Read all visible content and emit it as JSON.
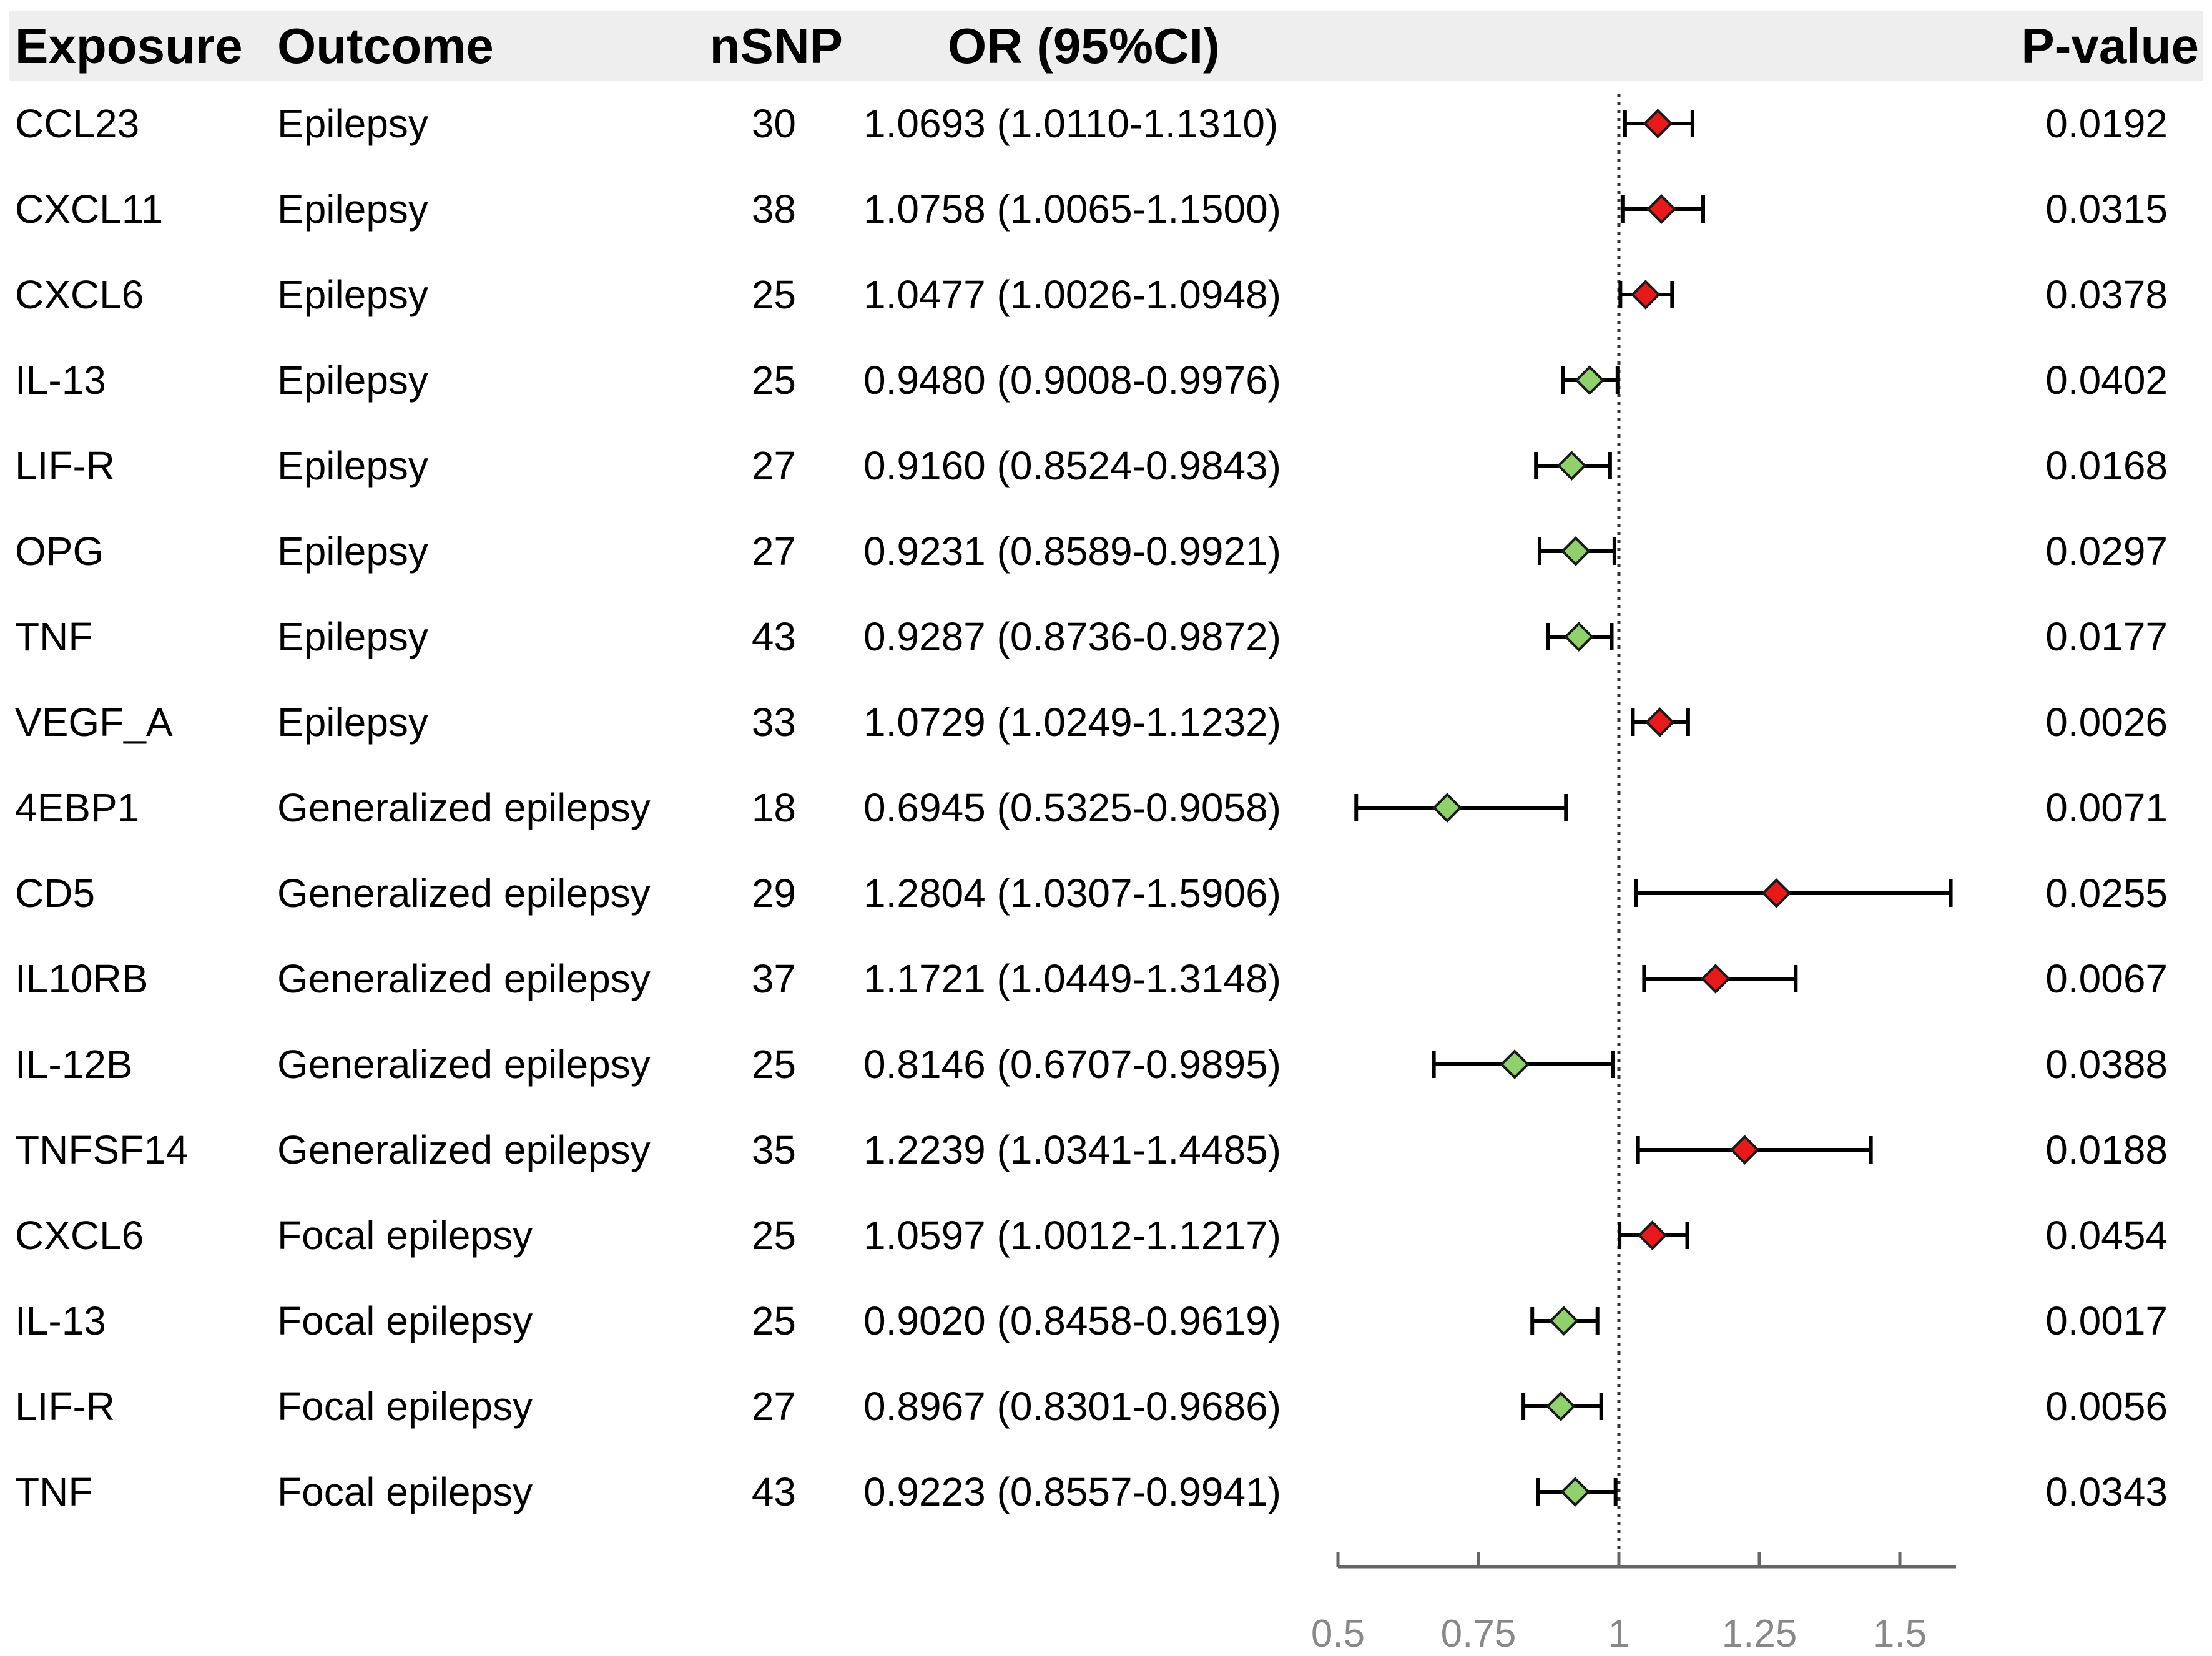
{
  "header": {
    "exposure": "Exposure",
    "outcome": "Outcome",
    "nsnp": "nSNP",
    "or": "OR (95%CI)",
    "pvalue": "P-value"
  },
  "rows": [
    {
      "exposure": "CCL23",
      "outcome": "Epilepsy",
      "nsnp": "30",
      "or_text": "1.0693 (1.0110-1.1310)",
      "pvalue": "0.0192"
    },
    {
      "exposure": "CXCL11",
      "outcome": "Epilepsy",
      "nsnp": "38",
      "or_text": "1.0758 (1.0065-1.1500)",
      "pvalue": "0.0315"
    },
    {
      "exposure": "CXCL6",
      "outcome": "Epilepsy",
      "nsnp": "25",
      "or_text": "1.0477 (1.0026-1.0948)",
      "pvalue": "0.0378"
    },
    {
      "exposure": "IL-13",
      "outcome": "Epilepsy",
      "nsnp": "25",
      "or_text": "0.9480 (0.9008-0.9976)",
      "pvalue": "0.0402"
    },
    {
      "exposure": "LIF-R",
      "outcome": "Epilepsy",
      "nsnp": "27",
      "or_text": "0.9160 (0.8524-0.9843)",
      "pvalue": "0.0168"
    },
    {
      "exposure": "OPG",
      "outcome": "Epilepsy",
      "nsnp": "27",
      "or_text": "0.9231 (0.8589-0.9921)",
      "pvalue": "0.0297"
    },
    {
      "exposure": "TNF",
      "outcome": "Epilepsy",
      "nsnp": "43",
      "or_text": "0.9287 (0.8736-0.9872)",
      "pvalue": "0.0177"
    },
    {
      "exposure": "VEGF_A",
      "outcome": "Epilepsy",
      "nsnp": "33",
      "or_text": "1.0729 (1.0249-1.1232)",
      "pvalue": "0.0026"
    },
    {
      "exposure": "4EBP1",
      "outcome": "Generalized epilepsy",
      "nsnp": "18",
      "or_text": "0.6945 (0.5325-0.9058)",
      "pvalue": "0.0071"
    },
    {
      "exposure": "CD5",
      "outcome": "Generalized epilepsy",
      "nsnp": "29",
      "or_text": "1.2804 (1.0307-1.5906)",
      "pvalue": "0.0255"
    },
    {
      "exposure": "IL10RB",
      "outcome": "Generalized epilepsy",
      "nsnp": "37",
      "or_text": "1.1721 (1.0449-1.3148)",
      "pvalue": "0.0067"
    },
    {
      "exposure": "IL-12B",
      "outcome": "Generalized epilepsy",
      "nsnp": "25",
      "or_text": "0.8146 (0.6707-0.9895)",
      "pvalue": "0.0388"
    },
    {
      "exposure": "TNFSF14",
      "outcome": "Generalized epilepsy",
      "nsnp": "35",
      "or_text": "1.2239 (1.0341-1.4485)",
      "pvalue": "0.0188"
    },
    {
      "exposure": "CXCL6",
      "outcome": "Focal epilepsy",
      "nsnp": "25",
      "or_text": "1.0597 (1.0012-1.1217)",
      "pvalue": "0.0454"
    },
    {
      "exposure": "IL-13",
      "outcome": "Focal epilepsy",
      "nsnp": "25",
      "or_text": "0.9020 (0.8458-0.9619)",
      "pvalue": "0.0017"
    },
    {
      "exposure": "LIF-R",
      "outcome": "Focal epilepsy",
      "nsnp": "27",
      "or_text": "0.8967 (0.8301-0.9686)",
      "pvalue": "0.0056"
    },
    {
      "exposure": "TNF",
      "outcome": "Focal epilepsy",
      "nsnp": "43",
      "or_text": "0.9223 (0.8557-0.9941)",
      "pvalue": "0.0343"
    }
  ],
  "colors": {
    "risk": "#e8191b",
    "protective": "#8fd16a",
    "marker_stroke": "#1a1a1a",
    "axis": "#666666",
    "header_bg": "#eeeeee"
  },
  "chart_data": {
    "type": "forest",
    "xlabel": "",
    "xlim": [
      0.5,
      1.6
    ],
    "ticks": [
      0.5,
      0.75,
      1,
      1.25,
      1.5
    ],
    "tick_labels": [
      "0.5",
      "0.75",
      "1",
      "1.25",
      "1.5"
    ],
    "reference_line": 1,
    "series": [
      {
        "name": "CCL23 - Epilepsy",
        "or": 1.0693,
        "lo": 1.011,
        "hi": 1.131
      },
      {
        "name": "CXCL11 - Epilepsy",
        "or": 1.0758,
        "lo": 1.0065,
        "hi": 1.15
      },
      {
        "name": "CXCL6 - Epilepsy",
        "or": 1.0477,
        "lo": 1.0026,
        "hi": 1.0948
      },
      {
        "name": "IL-13 - Epilepsy",
        "or": 0.948,
        "lo": 0.9008,
        "hi": 0.9976
      },
      {
        "name": "LIF-R - Epilepsy",
        "or": 0.916,
        "lo": 0.8524,
        "hi": 0.9843
      },
      {
        "name": "OPG - Epilepsy",
        "or": 0.9231,
        "lo": 0.8589,
        "hi": 0.9921
      },
      {
        "name": "TNF - Epilepsy",
        "or": 0.9287,
        "lo": 0.8736,
        "hi": 0.9872
      },
      {
        "name": "VEGF_A - Epilepsy",
        "or": 1.0729,
        "lo": 1.0249,
        "hi": 1.1232
      },
      {
        "name": "4EBP1 - Generalized epilepsy",
        "or": 0.6945,
        "lo": 0.5325,
        "hi": 0.9058
      },
      {
        "name": "CD5 - Generalized epilepsy",
        "or": 1.2804,
        "lo": 1.0307,
        "hi": 1.5906
      },
      {
        "name": "IL10RB - Generalized epilepsy",
        "or": 1.1721,
        "lo": 1.0449,
        "hi": 1.3148
      },
      {
        "name": "IL-12B - Generalized epilepsy",
        "or": 0.8146,
        "lo": 0.6707,
        "hi": 0.9895
      },
      {
        "name": "TNFSF14 - Generalized epilepsy",
        "or": 1.2239,
        "lo": 1.0341,
        "hi": 1.4485
      },
      {
        "name": "CXCL6 - Focal epilepsy",
        "or": 1.0597,
        "lo": 1.0012,
        "hi": 1.1217
      },
      {
        "name": "IL-13 - Focal epilepsy",
        "or": 0.902,
        "lo": 0.8458,
        "hi": 0.9619
      },
      {
        "name": "LIF-R - Focal epilepsy",
        "or": 0.8967,
        "lo": 0.8301,
        "hi": 0.9686
      },
      {
        "name": "TNF - Focal epilepsy",
        "or": 0.9223,
        "lo": 0.8557,
        "hi": 0.9941
      }
    ]
  }
}
